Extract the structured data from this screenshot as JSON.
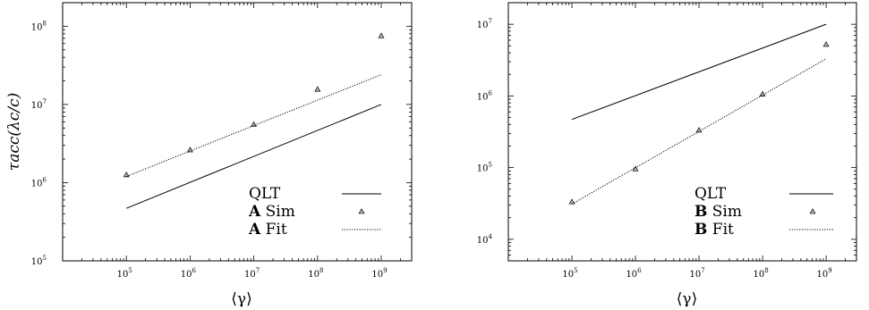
{
  "chart_data": [
    {
      "type": "scatter",
      "xlabel": "⟨γ⟩",
      "ylabel": "τacc(λc/c)",
      "x_scale": "log",
      "y_scale": "log",
      "xlim": [
        10000,
        3000000000
      ],
      "ylim": [
        100000,
        200000000
      ],
      "x_ticks": [
        100000,
        1000000,
        10000000,
        100000000,
        1000000000
      ],
      "x_tick_labels": [
        "10",
        "10",
        "10",
        "10",
        "10"
      ],
      "x_tick_exponents": [
        "5",
        "6",
        "7",
        "8",
        "9"
      ],
      "y_ticks": [
        100000,
        1000000,
        10000000,
        100000000
      ],
      "y_tick_labels": [
        "10",
        "10",
        "10",
        "10"
      ],
      "y_tick_exponents": [
        "5",
        "6",
        "7",
        "8"
      ],
      "grid": false,
      "legend_position": "bottom-right",
      "series": [
        {
          "name": "QLT",
          "label_bold": "",
          "label_rest": "QLT",
          "style": "solid",
          "x": [
            100000,
            1000000000
          ],
          "y": [
            470000,
            10000000
          ]
        },
        {
          "name": "A Sim",
          "label_bold": "A",
          "label_rest": " Sim",
          "style": "triangle",
          "x": [
            100000,
            1000000,
            10000000,
            100000000,
            1000000000
          ],
          "y": [
            1250000,
            2600000,
            5500000,
            15500000,
            75000000
          ]
        },
        {
          "name": "A Fit",
          "label_bold": "A",
          "label_rest": " Fit",
          "style": "dotted",
          "x": [
            100000,
            1000000000
          ],
          "y": [
            1200000,
            24000000
          ]
        }
      ]
    },
    {
      "type": "scatter",
      "xlabel": "⟨γ⟩",
      "ylabel": "",
      "x_scale": "log",
      "y_scale": "log",
      "xlim": [
        10000,
        3000000000
      ],
      "ylim": [
        5000,
        20000000
      ],
      "x_ticks": [
        100000,
        1000000,
        10000000,
        100000000,
        1000000000
      ],
      "x_tick_labels": [
        "10",
        "10",
        "10",
        "10",
        "10"
      ],
      "x_tick_exponents": [
        "5",
        "6",
        "7",
        "8",
        "9"
      ],
      "y_ticks": [
        10000,
        100000,
        1000000,
        10000000
      ],
      "y_tick_labels": [
        "10",
        "10",
        "10",
        "10"
      ],
      "y_tick_exponents": [
        "4",
        "5",
        "6",
        "7"
      ],
      "grid": false,
      "legend_position": "bottom-right",
      "series": [
        {
          "name": "QLT",
          "label_bold": "",
          "label_rest": "QLT",
          "style": "solid",
          "x": [
            100000,
            1000000000
          ],
          "y": [
            470000,
            10000000
          ]
        },
        {
          "name": "B Sim",
          "label_bold": "B",
          "label_rest": " Sim",
          "style": "triangle",
          "x": [
            100000,
            1000000,
            10000000,
            100000000,
            1000000000
          ],
          "y": [
            33000,
            95000,
            330000,
            1050000,
            5200000
          ]
        },
        {
          "name": "B Fit",
          "label_bold": "B",
          "label_rest": " Fit",
          "style": "dotted",
          "x": [
            100000,
            1000000000
          ],
          "y": [
            31000,
            3300000
          ]
        }
      ]
    }
  ]
}
